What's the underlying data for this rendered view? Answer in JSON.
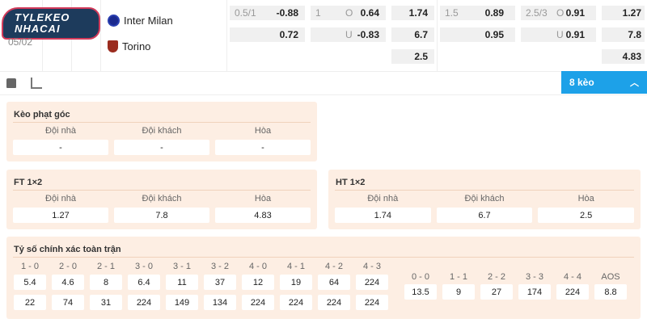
{
  "match": {
    "date": "05/02",
    "logo_text": "TYLEKEO NHACAI",
    "home": "Inter Milan",
    "away": "Torino"
  },
  "odds": {
    "g1": [
      {
        "h": "0.5/1",
        "v": "-0.88"
      },
      {
        "h": "",
        "v": "0.72"
      }
    ],
    "g2": [
      {
        "h": "1",
        "ou": "O",
        "v": "0.64"
      },
      {
        "h": "",
        "ou": "U",
        "v": "-0.83"
      }
    ],
    "g3": [
      "1.74",
      "6.7",
      "2.5"
    ],
    "g4": [
      {
        "h": "1.5",
        "v": "0.89"
      },
      {
        "h": "",
        "v": "0.95"
      }
    ],
    "g5": [
      {
        "h": "2.5/3",
        "ou": "O",
        "v": "0.91"
      },
      {
        "h": "",
        "ou": "U",
        "v": "0.91"
      }
    ],
    "g6": [
      "1.27",
      "7.8",
      "4.83"
    ]
  },
  "toolbar": {
    "more_label": "8 kèo"
  },
  "corner": {
    "title": "Kèo phạt góc",
    "labels": [
      "Đội nhà",
      "Đội khách",
      "Hòa"
    ],
    "values": [
      "-",
      "-",
      "-"
    ]
  },
  "ft": {
    "title": "FT 1×2",
    "labels": [
      "Đội nhà",
      "Đội khách",
      "Hòa"
    ],
    "values": [
      "1.27",
      "7.8",
      "4.83"
    ]
  },
  "ht": {
    "title": "HT 1×2",
    "labels": [
      "Đội nhà",
      "Đội khách",
      "Hòa"
    ],
    "values": [
      "1.74",
      "6.7",
      "2.5"
    ]
  },
  "correct": {
    "title": "Tỷ số chính xác toàn trận",
    "left": [
      {
        "s": "1 - 0",
        "a": "5.4",
        "b": "22"
      },
      {
        "s": "2 - 0",
        "a": "4.6",
        "b": "74"
      },
      {
        "s": "2 - 1",
        "a": "8",
        "b": "31"
      },
      {
        "s": "3 - 0",
        "a": "6.4",
        "b": "224"
      },
      {
        "s": "3 - 1",
        "a": "11",
        "b": "149"
      },
      {
        "s": "3 - 2",
        "a": "37",
        "b": "134"
      },
      {
        "s": "4 - 0",
        "a": "12",
        "b": "224"
      },
      {
        "s": "4 - 1",
        "a": "19",
        "b": "224"
      },
      {
        "s": "4 - 2",
        "a": "64",
        "b": "224"
      },
      {
        "s": "4 - 3",
        "a": "224",
        "b": "224"
      }
    ],
    "right": [
      {
        "s": "0 - 0",
        "a": "13.5"
      },
      {
        "s": "1 - 1",
        "a": "9"
      },
      {
        "s": "2 - 2",
        "a": "27"
      },
      {
        "s": "3 - 3",
        "a": "174"
      },
      {
        "s": "4 - 4",
        "a": "224"
      },
      {
        "s": "AOS",
        "a": "8.8"
      }
    ]
  },
  "colors": {
    "accent": "#1da1e8",
    "panel": "#fdeee3"
  }
}
